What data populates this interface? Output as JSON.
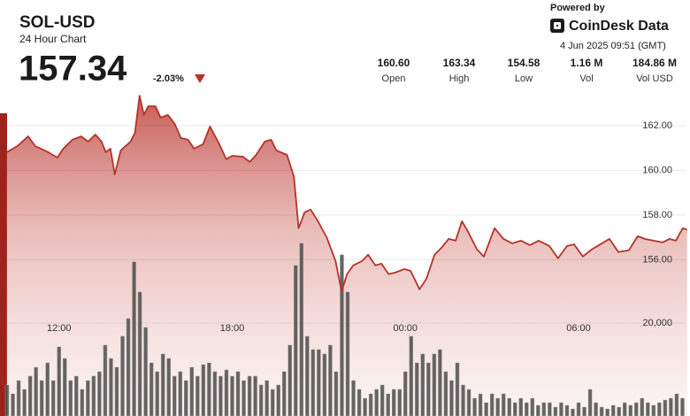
{
  "header": {
    "symbol": "SOL-USD",
    "subtitle": "24 Hour Chart",
    "price": "157.34",
    "change": "-2.03%",
    "powered_by": "Powered by",
    "brand": "CoinDesk Data",
    "timestamp": "4 Jun 2025 09:51 (GMT)",
    "stats": [
      {
        "value": "160.60",
        "label": "Open"
      },
      {
        "value": "163.34",
        "label": "High"
      },
      {
        "value": "154.58",
        "label": "Low"
      },
      {
        "value": "1.16 M",
        "label": "Vol"
      },
      {
        "value": "184.86 M",
        "label": "Vol USD"
      }
    ]
  },
  "chart_data": [
    {
      "type": "line",
      "color": "#b7322a",
      "grid": true,
      "xlim": [
        10.2,
        33.8
      ],
      "xticks": [
        {
          "value": 12,
          "label": "12:00"
        },
        {
          "value": 18,
          "label": "18:00"
        },
        {
          "value": 24,
          "label": "00:00"
        },
        {
          "value": 30,
          "label": "06:00"
        }
      ],
      "ylim": [
        149,
        163.9
      ],
      "yticks": [
        {
          "value": 156,
          "label": "156.00"
        },
        {
          "value": 158,
          "label": "158.00"
        },
        {
          "value": 160,
          "label": "160.00"
        },
        {
          "value": 162,
          "label": "162.00"
        }
      ],
      "x": [
        10.19,
        10.56,
        10.93,
        11.17,
        11.63,
        11.94,
        12.15,
        12.46,
        12.77,
        13.01,
        13.26,
        13.47,
        13.62,
        13.78,
        13.93,
        14.14,
        14.48,
        14.63,
        14.79,
        14.94,
        15.09,
        15.34,
        15.52,
        15.77,
        16.01,
        16.22,
        16.47,
        16.68,
        16.99,
        17.23,
        17.54,
        17.79,
        18,
        18.37,
        18.61,
        18.83,
        19.13,
        19.35,
        19.53,
        19.9,
        20.14,
        20.3,
        20.51,
        20.72,
        20.97,
        21.27,
        21.58,
        21.79,
        21.98,
        22.19,
        22.5,
        22.71,
        22.96,
        23.17,
        23.42,
        23.66,
        23.97,
        24.18,
        24.49,
        24.73,
        25.01,
        25.25,
        25.5,
        25.74,
        25.96,
        26.17,
        26.48,
        26.72,
        27.09,
        27.4,
        27.7,
        28.01,
        28.31,
        28.62,
        28.99,
        29.29,
        29.6,
        29.84,
        30.15,
        30.46,
        30.76,
        31.07,
        31.38,
        31.74,
        32.05,
        32.29,
        32.6,
        32.91,
        33.15,
        33.37,
        33.61,
        33.76
      ],
      "values": [
        160.81,
        161.09,
        161.52,
        161.09,
        160.81,
        160.57,
        160.97,
        161.37,
        161.52,
        161.29,
        161.6,
        161.29,
        160.81,
        160.97,
        159.82,
        160.89,
        161.29,
        161.68,
        163.34,
        162.48,
        162.87,
        162.87,
        162.36,
        162.48,
        162.08,
        161.45,
        161.37,
        160.97,
        161.17,
        161.96,
        161.21,
        160.5,
        160.65,
        160.61,
        160.38,
        160.69,
        161.29,
        161.37,
        160.89,
        160.69,
        159.7,
        157.41,
        158.12,
        158.24,
        157.72,
        157.01,
        155.94,
        154.58,
        155.35,
        155.74,
        155.94,
        156.22,
        155.74,
        155.82,
        155.35,
        155.43,
        155.58,
        155.5,
        154.67,
        155.15,
        156.22,
        156.53,
        156.93,
        156.85,
        157.72,
        157.25,
        156.46,
        156.14,
        157.41,
        156.93,
        156.73,
        156.85,
        156.65,
        156.85,
        156.61,
        156.06,
        156.61,
        156.69,
        156.14,
        156.46,
        156.69,
        156.93,
        156.34,
        156.42,
        157.05,
        156.93,
        156.85,
        156.77,
        156.93,
        156.85,
        157.41,
        157.34
      ]
    },
    {
      "type": "bar",
      "color": "#4a4a4a",
      "xlim": [
        10.2,
        33.8
      ],
      "ylim": [
        0,
        71600
      ],
      "yticks": [
        {
          "value": 20000,
          "label": "20,000"
        }
      ],
      "x": [
        10.2,
        10.4,
        10.6,
        10.8,
        11,
        11.2,
        11.4,
        11.6,
        11.8,
        12,
        12.2,
        12.4,
        12.6,
        12.8,
        13,
        13.2,
        13.4,
        13.6,
        13.8,
        14,
        14.2,
        14.4,
        14.6,
        14.8,
        15,
        15.2,
        15.4,
        15.6,
        15.8,
        16,
        16.2,
        16.4,
        16.6,
        16.8,
        17,
        17.2,
        17.4,
        17.6,
        17.8,
        18,
        18.2,
        18.4,
        18.6,
        18.8,
        19,
        19.2,
        19.4,
        19.6,
        19.8,
        20,
        20.2,
        20.4,
        20.6,
        20.8,
        21,
        21.2,
        21.4,
        21.6,
        21.8,
        22,
        22.2,
        22.4,
        22.6,
        22.8,
        23,
        23.2,
        23.4,
        23.6,
        23.8,
        24,
        24.2,
        24.4,
        24.6,
        24.8,
        25,
        25.2,
        25.4,
        25.6,
        25.8,
        26,
        26.2,
        26.4,
        26.6,
        26.8,
        27,
        27.2,
        27.4,
        27.6,
        27.8,
        28,
        28.2,
        28.4,
        28.6,
        28.8,
        29,
        29.2,
        29.4,
        29.6,
        29.8,
        30,
        30.2,
        30.4,
        30.6,
        30.8,
        31,
        31.2,
        31.4,
        31.6,
        31.8,
        32,
        32.2,
        32.4,
        32.6,
        32.8,
        33,
        33.2,
        33.4,
        33.6
      ],
      "values": [
        6670,
        4760,
        7620,
        5720,
        8570,
        10480,
        7620,
        11430,
        7620,
        14860,
        12380,
        7620,
        8570,
        5720,
        7620,
        8570,
        9530,
        15240,
        12380,
        10480,
        17150,
        20960,
        33150,
        26670,
        19050,
        11430,
        9530,
        13340,
        12380,
        8570,
        9530,
        7620,
        10480,
        8570,
        11050,
        11430,
        9530,
        8570,
        9910,
        8570,
        9530,
        7620,
        8570,
        8570,
        6670,
        7620,
        5720,
        6670,
        9530,
        15240,
        32390,
        37150,
        17150,
        14290,
        14290,
        13340,
        15240,
        9530,
        34670,
        26670,
        7620,
        5720,
        3810,
        4760,
        5720,
        6670,
        4760,
        5720,
        5720,
        9530,
        17150,
        11430,
        13340,
        11430,
        13340,
        14290,
        9530,
        7620,
        11430,
        6670,
        5720,
        3810,
        4760,
        2860,
        4760,
        3810,
        4760,
        3810,
        2860,
        3810,
        2860,
        3810,
        2290,
        2860,
        2860,
        1910,
        2860,
        2290,
        1520,
        2860,
        1910,
        5720,
        2860,
        1910,
        1520,
        2290,
        1910,
        2860,
        2290,
        2860,
        3810,
        2860,
        2290,
        2860,
        3430,
        3810,
        4760,
        3810
      ]
    }
  ]
}
